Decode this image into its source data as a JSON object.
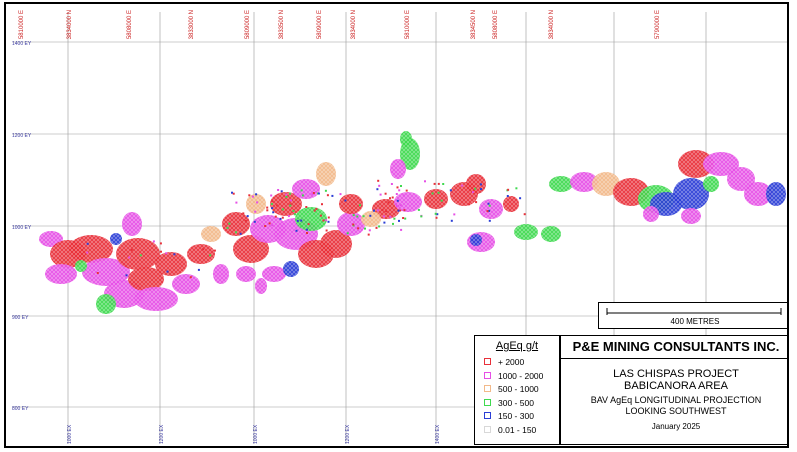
{
  "map": {
    "grid_top_labels": [
      "5810000 E",
      "3834000 N",
      "5808000 E",
      "3833000 N",
      "5809000 E",
      "3833500 N",
      "5809000 E",
      "3834000 N",
      "5810000 E",
      "3834500 N",
      "5808000 E",
      "3834000 N",
      "5790000 E"
    ],
    "elevation_labels": [
      "1400 EY",
      "1200 EY",
      "1000 EY",
      "900 EY",
      "800 EY"
    ],
    "bottom_labels": [
      "1000 EX",
      "1200 EX",
      "1000 EX",
      "1200 EX",
      "1400 EX"
    ],
    "colors": {
      "plus2000": "#e8303a",
      "r1000_2000": "#e64fe6",
      "r500_1000": "#f2b98a",
      "r300_500": "#3fd94f",
      "r150_300": "#2b3ed6",
      "r001_150": "#d8d8d8",
      "grid": "#999999",
      "label": "#cc2222",
      "label_blue": "#3a3aa0"
    }
  },
  "legend": {
    "title": "AgEq g/t",
    "items": [
      {
        "label": "+ 2000",
        "color": "#e8303a"
      },
      {
        "label": "1000 - 2000",
        "color": "#e64fe6"
      },
      {
        "label": "500 - 1000",
        "color": "#f2b98a"
      },
      {
        "label": "300 - 500",
        "color": "#3fd94f"
      },
      {
        "label": "150 - 300",
        "color": "#2b3ed6"
      },
      {
        "label": "0.01 - 150",
        "color": "#d8d8d8"
      }
    ]
  },
  "title_block": {
    "company": "P&E MINING CONSULTANTS INC.",
    "project_line1": "LAS CHISPAS PROJECT",
    "project_line2": "BABICANORA AREA",
    "desc_line1": "BAV AgEq LONGITUDINAL PROJECTION",
    "desc_line2": "LOOKING SOUTHWEST",
    "date": "January 2025"
  },
  "scale_bar": {
    "label": "400 METRES"
  }
}
